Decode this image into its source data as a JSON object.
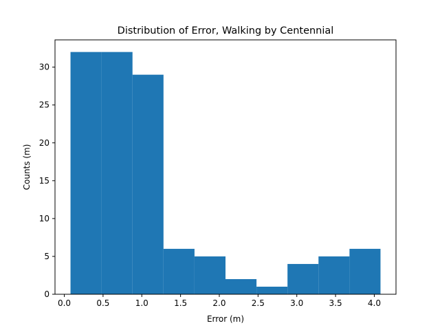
{
  "chart_data": {
    "type": "bar",
    "title": "Distribution of Error, Walking by Centennial",
    "xlabel": "Error (m)",
    "ylabel": "Counts (m)",
    "bins": [
      {
        "start": 0.08,
        "end": 0.48,
        "count": 32
      },
      {
        "start": 0.48,
        "end": 0.88,
        "count": 32
      },
      {
        "start": 0.88,
        "end": 1.28,
        "count": 29
      },
      {
        "start": 1.28,
        "end": 1.68,
        "count": 6
      },
      {
        "start": 1.68,
        "end": 2.08,
        "count": 5
      },
      {
        "start": 2.08,
        "end": 2.48,
        "count": 2
      },
      {
        "start": 2.48,
        "end": 2.88,
        "count": 1
      },
      {
        "start": 2.88,
        "end": 3.28,
        "count": 4
      },
      {
        "start": 3.28,
        "end": 3.68,
        "count": 5
      },
      {
        "start": 3.68,
        "end": 4.08,
        "count": 6
      }
    ],
    "xlim": [
      -0.12,
      4.28
    ],
    "ylim": [
      0,
      33.6
    ],
    "xticks": [
      "0.0",
      "0.5",
      "1.0",
      "1.5",
      "2.0",
      "2.5",
      "3.0",
      "3.5",
      "4.0"
    ],
    "yticks": [
      "0",
      "5",
      "10",
      "15",
      "20",
      "25",
      "30"
    ],
    "bar_color": "#1f77b4",
    "grid": false,
    "legend": "none"
  }
}
